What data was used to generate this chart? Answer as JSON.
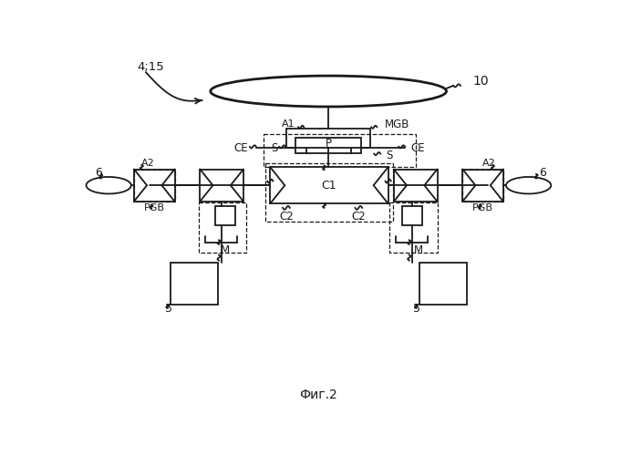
{
  "title": "Фиг.2",
  "label_415": "4;15",
  "label_10": "10",
  "label_6": "6",
  "label_5": "5",
  "label_MGB": "MGB",
  "label_A1": "A1",
  "label_A2": "A2",
  "label_PGB": "PGB",
  "label_CE": "CE",
  "label_S_left": "S",
  "label_S_right": "S",
  "label_P": "P",
  "label_C1": "C1",
  "label_C2": "C2",
  "label_M": "M",
  "bg_color": "#ffffff",
  "line_color": "#1a1a1a"
}
